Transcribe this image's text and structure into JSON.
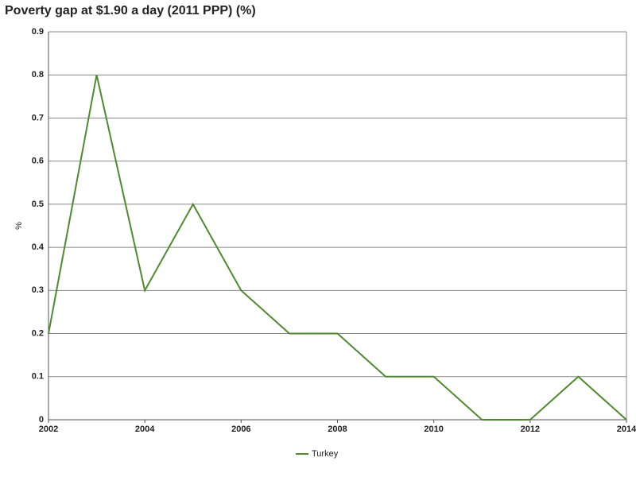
{
  "chart_data": {
    "type": "line",
    "title": "Poverty gap at $1.90 a day (2011 PPP) (%)",
    "y_label": "%",
    "x": [
      2002,
      2003,
      2004,
      2005,
      2006,
      2007,
      2008,
      2009,
      2010,
      2011,
      2012,
      2013,
      2014
    ],
    "series": [
      {
        "name": "Turkey",
        "color": "#4f8a30",
        "values": [
          0.2,
          0.8,
          0.3,
          0.5,
          0.3,
          0.2,
          0.2,
          0.1,
          0.1,
          0,
          0,
          0.1,
          0
        ]
      }
    ],
    "xlim": [
      2002,
      2014
    ],
    "xticks": [
      2002,
      2004,
      2006,
      2008,
      2010,
      2012,
      2014
    ],
    "ylim": [
      0,
      0.9
    ],
    "yticks": [
      0,
      0.1,
      0.2,
      0.3,
      0.4,
      0.5,
      0.6,
      0.7,
      0.8,
      0.9
    ],
    "grid": true,
    "legend": "bottom"
  }
}
